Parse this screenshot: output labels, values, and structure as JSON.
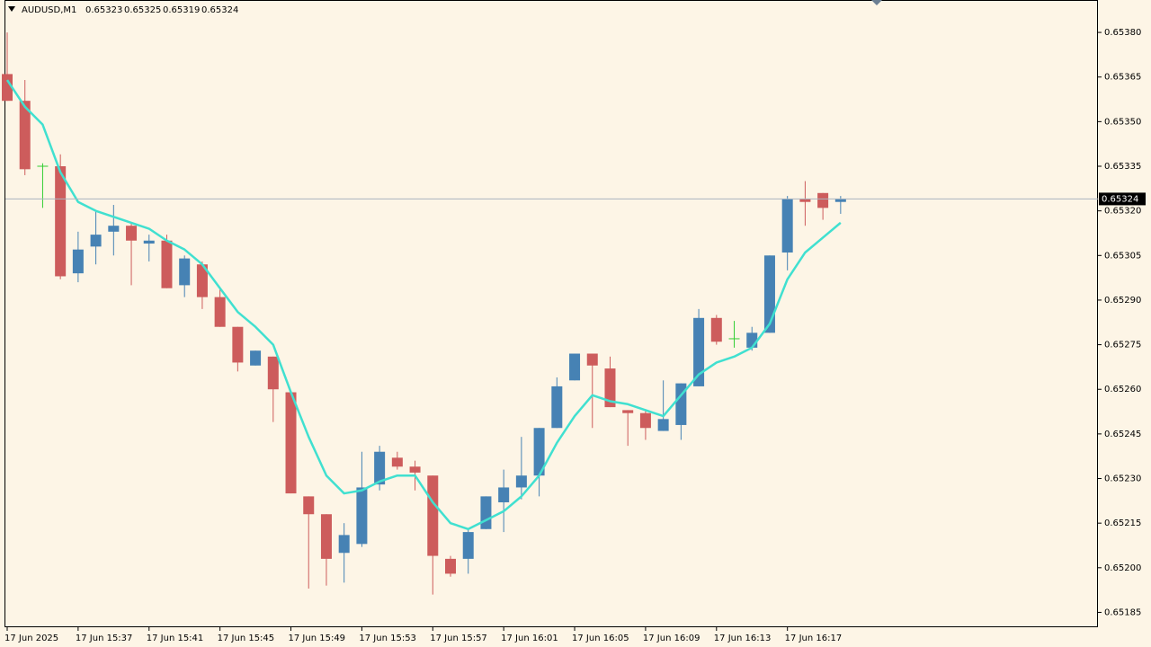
{
  "chart_data": {
    "type": "candlestick",
    "title": "AUDUSD,M1",
    "categories": [
      "17 Jun 2025",
      null,
      null,
      null,
      "17 Jun 15:37",
      null,
      null,
      null,
      "17 Jun 15:41",
      null,
      null,
      null,
      "17 Jun 15:45",
      null,
      null,
      null,
      "17 Jun 15:49",
      null,
      null,
      null,
      "17 Jun 15:53",
      null,
      null,
      null,
      "17 Jun 15:57",
      null,
      null,
      null,
      "17 Jun 16:01",
      null,
      null,
      null,
      "17 Jun 16:05",
      null,
      null,
      null,
      "17 Jun 16:09",
      null,
      null,
      null,
      "17 Jun 16:13",
      null,
      null,
      null,
      "17 Jun 16:17",
      null,
      null,
      null
    ],
    "open": [
      0.65366,
      0.65357,
      0.65335,
      0.65335,
      0.65299,
      0.65308,
      0.65313,
      0.65315,
      0.65309,
      0.6531,
      0.65295,
      0.65302,
      0.65291,
      0.65281,
      0.65268,
      0.65271,
      0.65259,
      0.65224,
      0.65218,
      0.65205,
      0.65208,
      0.65228,
      0.65237,
      0.65234,
      0.65231,
      0.65203,
      0.65203,
      0.65213,
      0.65222,
      0.65227,
      0.65231,
      0.65247,
      0.65263,
      0.65272,
      0.65267,
      0.65253,
      0.65252,
      0.65246,
      0.65248,
      0.65261,
      0.65284,
      0.65277,
      0.65274,
      0.65279,
      0.65306,
      0.65324,
      0.65326,
      0.65323
    ],
    "high": [
      0.6538,
      0.65364,
      0.65336,
      0.65339,
      0.65313,
      0.6532,
      0.65322,
      0.65316,
      0.65312,
      0.65312,
      0.65305,
      0.65303,
      0.65294,
      0.65281,
      0.65273,
      0.65271,
      0.65259,
      0.65224,
      0.65218,
      0.65215,
      0.65239,
      0.65241,
      0.65239,
      0.65236,
      0.65231,
      0.65204,
      0.65213,
      0.65224,
      0.65233,
      0.65244,
      0.65247,
      0.65264,
      0.65272,
      0.65272,
      0.65271,
      0.65253,
      0.65253,
      0.65263,
      0.65262,
      0.65287,
      0.65285,
      0.65283,
      0.65281,
      0.65305,
      0.65325,
      0.6533,
      0.65326,
      0.65325
    ],
    "low": [
      0.65357,
      0.65332,
      0.65321,
      0.65297,
      0.65296,
      0.65302,
      0.65305,
      0.65295,
      0.65303,
      0.65294,
      0.65291,
      0.65287,
      0.65281,
      0.65266,
      0.65268,
      0.65249,
      0.65225,
      0.65193,
      0.65194,
      0.65195,
      0.65207,
      0.65226,
      0.65233,
      0.65226,
      0.65191,
      0.65197,
      0.65198,
      0.65213,
      0.65212,
      0.65223,
      0.65224,
      0.65247,
      0.65263,
      0.65247,
      0.65254,
      0.65241,
      0.65243,
      0.65246,
      0.65243,
      0.65261,
      0.65275,
      0.65274,
      0.65273,
      0.65279,
      0.653,
      0.65315,
      0.65317,
      0.65319
    ],
    "close": [
      0.65357,
      0.65334,
      0.65335,
      0.65298,
      0.65307,
      0.65312,
      0.65315,
      0.6531,
      0.6531,
      0.65294,
      0.65304,
      0.65291,
      0.65281,
      0.65269,
      0.65273,
      0.6526,
      0.65225,
      0.65218,
      0.65203,
      0.65211,
      0.65227,
      0.65239,
      0.65234,
      0.65232,
      0.65204,
      0.65198,
      0.65212,
      0.65224,
      0.65227,
      0.65231,
      0.65247,
      0.65261,
      0.65272,
      0.65268,
      0.65254,
      0.65252,
      0.65247,
      0.6525,
      0.65262,
      0.65284,
      0.65276,
      0.65277,
      0.65279,
      0.65305,
      0.65324,
      0.65323,
      0.65321,
      0.65324
    ],
    "ma": {
      "color": "#40e0d0",
      "values": [
        0.65364,
        0.65355,
        0.65349,
        0.65333,
        0.65323,
        0.6532,
        0.65318,
        0.65316,
        0.65314,
        0.6531,
        0.65307,
        0.65302,
        0.65294,
        0.65286,
        0.65281,
        0.65275,
        0.65259,
        0.65244,
        0.65231,
        0.65225,
        0.65226,
        0.65229,
        0.65231,
        0.65231,
        0.65222,
        0.65215,
        0.65213,
        0.65216,
        0.65219,
        0.65224,
        0.65231,
        0.65242,
        0.65251,
        0.65258,
        0.65256,
        0.65255,
        0.65253,
        0.65251,
        0.65258,
        0.65265,
        0.65269,
        0.65271,
        0.65274,
        0.65282,
        0.65297,
        0.65306,
        0.65311,
        0.65316
      ]
    },
    "up_color": "#4682b4",
    "down_color": "#cd5c5c",
    "doji_color": "#32cd32",
    "last_price": 0.65324,
    "ylim": [
      0.6518,
      0.653909
    ],
    "yticks": [
      {
        "value": 0.6538,
        "label": "0.65380"
      },
      0.65365,
      {
        "value": 0.6535,
        "label": "0.65350"
      },
      0.65335,
      {
        "value": 0.6532,
        "label": "0.65320"
      },
      0.65305,
      {
        "value": 0.6529,
        "label": "0.65290"
      },
      0.65275,
      {
        "value": 0.6526,
        "label": "0.65260"
      },
      0.65245,
      {
        "value": 0.6523,
        "label": "0.65230"
      },
      0.65215,
      {
        "value": 0.652,
        "label": "0.65200"
      },
      0.65185
    ]
  }
}
